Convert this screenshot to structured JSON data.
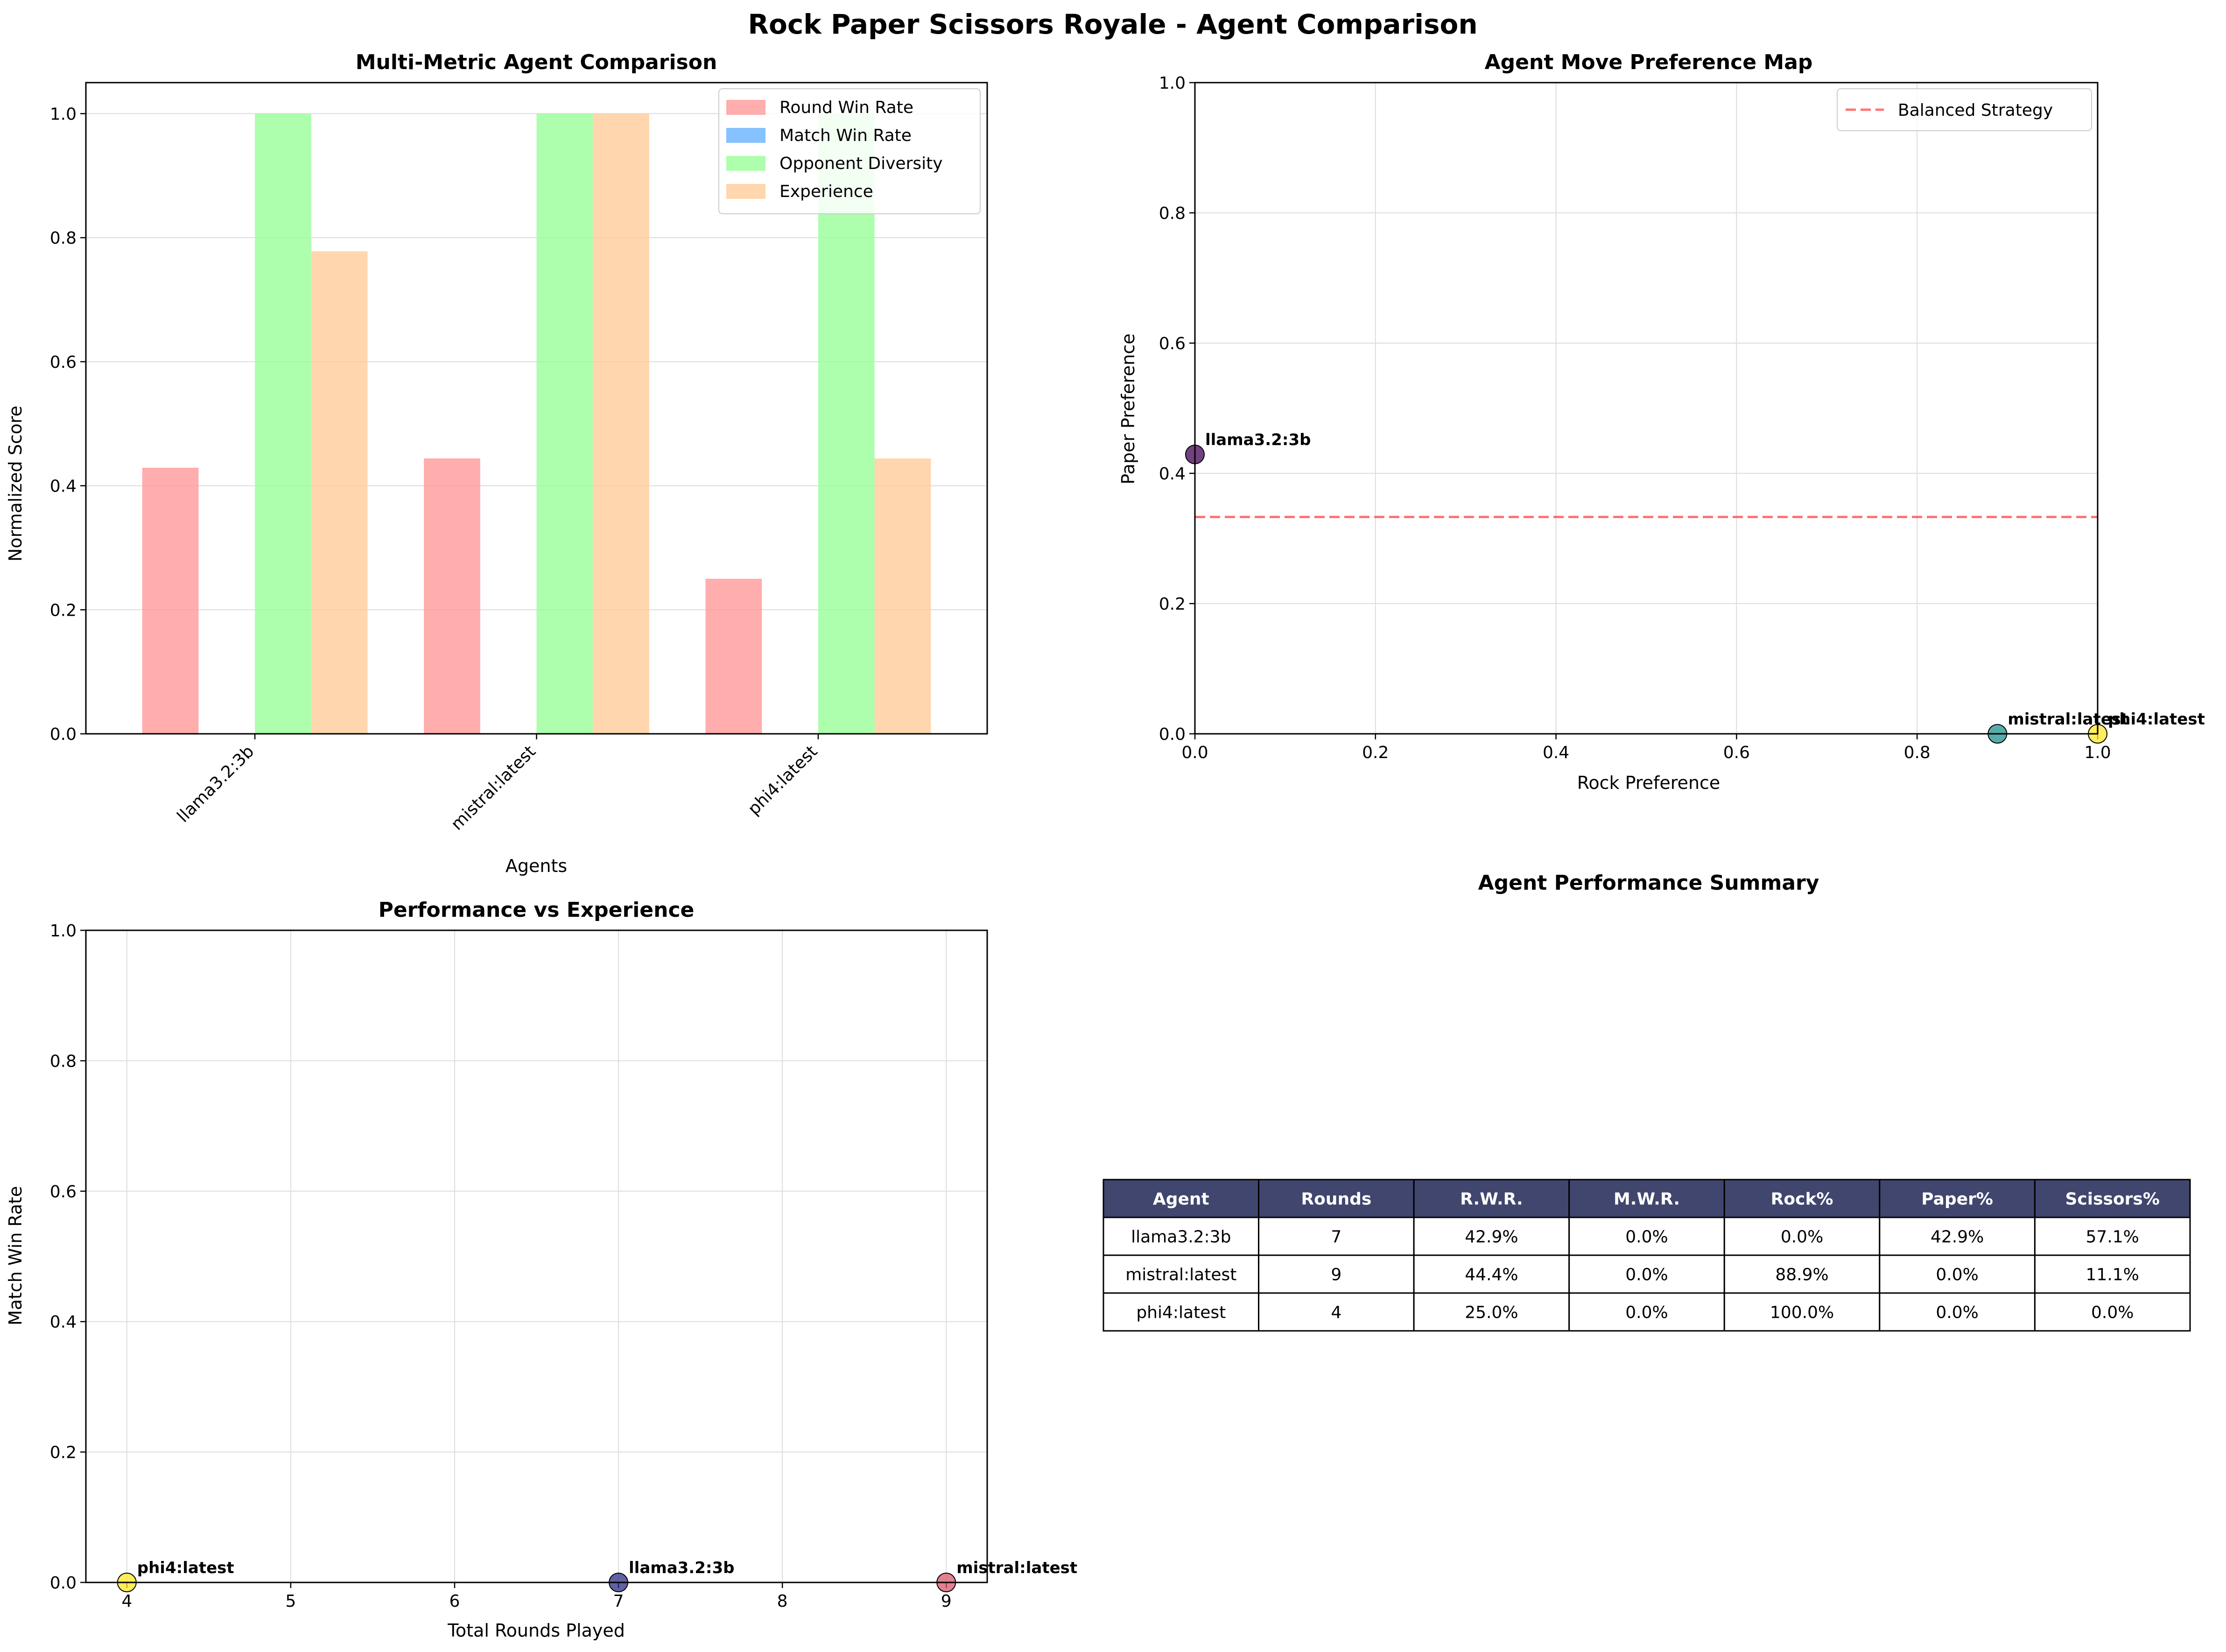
{
  "title": "Rock Paper Scissors Royale - Agent Comparison",
  "chart_data": [
    {
      "type": "bar",
      "title": "Multi-Metric Agent Comparison",
      "xlabel": "Agents",
      "ylabel": "Normalized Score",
      "categories": [
        "llama3.2:3b",
        "mistral:latest",
        "phi4:latest"
      ],
      "series": [
        {
          "name": "Round Win Rate",
          "values": [
            0.429,
            0.444,
            0.25
          ],
          "color": "#ff9999"
        },
        {
          "name": "Match Win Rate",
          "values": [
            0.0,
            0.0,
            0.0
          ],
          "color": "#66b3ff"
        },
        {
          "name": "Opponent Diversity",
          "values": [
            1.0,
            1.0,
            1.0
          ],
          "color": "#99ff99"
        },
        {
          "name": "Experience",
          "values": [
            0.778,
            1.0,
            0.444
          ],
          "color": "#ffcc99"
        }
      ],
      "ylim": [
        0,
        1.05
      ],
      "yticks": [
        "0.0",
        "0.2",
        "0.4",
        "0.6",
        "0.8",
        "1.0"
      ],
      "grid": true,
      "legend": "upper-right"
    },
    {
      "type": "scatter",
      "title": "Agent Move Preference Map",
      "xlabel": "Rock Preference",
      "ylabel": "Paper Preference",
      "xlim": [
        0,
        1
      ],
      "ylim": [
        0,
        1
      ],
      "xticks": [
        "0.0",
        "0.2",
        "0.4",
        "0.6",
        "0.8",
        "1.0"
      ],
      "yticks": [
        "0.0",
        "0.2",
        "0.4",
        "0.6",
        "0.8",
        "1.0"
      ],
      "points": [
        {
          "label": "llama3.2:3b",
          "x": 0.0,
          "y": 0.429,
          "color": "#440154"
        },
        {
          "label": "mistral:latest",
          "x": 0.889,
          "y": 0.0,
          "color": "#21918c"
        },
        {
          "label": "phi4:latest",
          "x": 1.0,
          "y": 0.0,
          "color": "#fde725"
        }
      ],
      "reference_line": {
        "label": "Balanced Strategy",
        "y": 0.333,
        "color": "#ff4444"
      },
      "grid": true,
      "legend": "upper-right"
    },
    {
      "type": "scatter",
      "title": "Performance vs Experience",
      "xlabel": "Total Rounds Played",
      "ylabel": "Match Win Rate",
      "xlim": [
        3.75,
        9.25
      ],
      "ylim": [
        0,
        1
      ],
      "xticks": [
        "4",
        "5",
        "6",
        "7",
        "8",
        "9"
      ],
      "yticks": [
        "0.0",
        "0.2",
        "0.4",
        "0.6",
        "0.8",
        "1.0"
      ],
      "points": [
        {
          "label": "phi4:latest",
          "x": 4,
          "y": 0.0,
          "color": "#fde725"
        },
        {
          "label": "llama3.2:3b",
          "x": 7,
          "y": 0.0,
          "color": "#2c2d84"
        },
        {
          "label": "mistral:latest",
          "x": 9,
          "y": 0.0,
          "color": "#d8576b"
        }
      ],
      "grid": true
    },
    {
      "type": "table",
      "title": "Agent Performance Summary",
      "columns": [
        "Agent",
        "Rounds",
        "R.W.R.",
        "M.W.R.",
        "Rock%",
        "Paper%",
        "Scissors%"
      ],
      "rows": [
        [
          "llama3.2:3b",
          "7",
          "42.9%",
          "0.0%",
          "0.0%",
          "42.9%",
          "57.1%"
        ],
        [
          "mistral:latest",
          "9",
          "44.4%",
          "0.0%",
          "88.9%",
          "0.0%",
          "11.1%"
        ],
        [
          "phi4:latest",
          "4",
          "25.0%",
          "0.0%",
          "100.0%",
          "0.0%",
          "0.0%"
        ]
      ],
      "header_color": "#40466e"
    }
  ]
}
